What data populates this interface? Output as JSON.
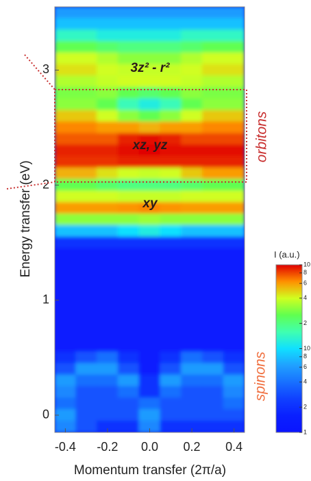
{
  "chart_data": {
    "type": "heatmap",
    "xlabel": "Momentum transfer (2π/a)",
    "ylabel": "Energy transfer (eV)",
    "xlim": [
      -0.45,
      0.45
    ],
    "ylim": [
      -0.15,
      3.55
    ],
    "xticks": [
      -0.4,
      -0.2,
      {
        "value": 0,
        "label": "0.0"
      },
      0.2,
      0.4
    ],
    "yticks": [
      0,
      1,
      2,
      3
    ],
    "x": [
      -0.4,
      -0.3,
      -0.2,
      -0.1,
      0,
      0.1,
      0.2,
      0.3,
      0.4
    ],
    "y": [
      3.5,
      3.4,
      3.3,
      3.2,
      3.1,
      3.0,
      2.9,
      2.8,
      2.7,
      2.6,
      2.5,
      2.4,
      2.3,
      2.2,
      2.1,
      2.0,
      1.9,
      1.8,
      1.7,
      1.6,
      1.5,
      1.4,
      1.3,
      1.2,
      1.1,
      1.0,
      0.9,
      0.8,
      0.7,
      0.6,
      0.5,
      0.4,
      0.3,
      0.2,
      0.1,
      0.0,
      -0.1
    ],
    "values": [
      [
        6,
        6,
        6,
        6,
        6,
        6,
        6,
        6,
        6
      ],
      [
        8,
        8,
        8,
        8,
        8,
        8,
        8,
        8,
        8
      ],
      [
        14,
        14,
        12,
        12,
        12,
        12,
        14,
        14,
        14
      ],
      [
        25,
        25,
        22,
        20,
        20,
        20,
        22,
        25,
        25
      ],
      [
        40,
        40,
        35,
        30,
        30,
        30,
        35,
        40,
        40
      ],
      [
        45,
        45,
        40,
        38,
        38,
        38,
        40,
        45,
        45
      ],
      [
        35,
        35,
        38,
        40,
        40,
        40,
        38,
        35,
        35
      ],
      [
        28,
        28,
        30,
        25,
        22,
        25,
        30,
        28,
        28
      ],
      [
        30,
        30,
        25,
        15,
        12,
        15,
        25,
        30,
        30
      ],
      [
        50,
        50,
        40,
        30,
        25,
        30,
        40,
        50,
        50
      ],
      [
        65,
        65,
        60,
        60,
        55,
        60,
        60,
        65,
        65
      ],
      [
        75,
        75,
        75,
        90,
        95,
        90,
        80,
        80,
        80
      ],
      [
        90,
        90,
        90,
        95,
        100,
        95,
        95,
        95,
        95
      ],
      [
        85,
        85,
        85,
        90,
        90,
        90,
        90,
        90,
        90
      ],
      [
        55,
        55,
        45,
        40,
        38,
        40,
        50,
        60,
        60
      ],
      [
        25,
        25,
        22,
        20,
        20,
        20,
        22,
        25,
        25
      ],
      [
        40,
        40,
        40,
        38,
        38,
        38,
        40,
        40,
        40
      ],
      [
        60,
        60,
        60,
        62,
        65,
        62,
        60,
        60,
        60
      ],
      [
        30,
        30,
        30,
        30,
        32,
        30,
        30,
        30,
        30
      ],
      [
        8,
        8,
        8,
        10,
        12,
        10,
        8,
        8,
        8
      ],
      [
        2,
        2,
        2,
        2,
        2,
        2,
        2,
        2,
        2
      ],
      [
        1.5,
        1.5,
        1.5,
        1.5,
        1.5,
        1.5,
        1.5,
        1.5,
        1.5
      ],
      [
        1.5,
        1.5,
        1.5,
        1.5,
        1.5,
        1.5,
        1.5,
        1.5,
        1.5
      ],
      [
        1.5,
        1.5,
        1.5,
        1.5,
        1.5,
        1.5,
        1.5,
        1.5,
        1.5
      ],
      [
        1.5,
        1.5,
        1.5,
        1.5,
        1.5,
        1.5,
        1.5,
        1.5,
        1.5
      ],
      [
        1.5,
        1.5,
        1.5,
        1.5,
        1.5,
        1.5,
        1.5,
        1.5,
        1.5
      ],
      [
        1.5,
        1.5,
        1.5,
        1.5,
        1.5,
        1.5,
        1.5,
        1.5,
        1.5
      ],
      [
        1.5,
        1.5,
        1.5,
        1.5,
        1.5,
        1.5,
        1.5,
        1.5,
        1.5
      ],
      [
        1.5,
        1.5,
        1.5,
        1.5,
        1.5,
        1.5,
        1.5,
        1.5,
        1.5
      ],
      [
        1.5,
        1.5,
        1.5,
        1.5,
        1.5,
        1.5,
        1.5,
        1.5,
        1.5
      ],
      [
        2,
        3,
        4,
        2,
        1.5,
        2,
        4,
        3,
        2
      ],
      [
        3,
        6,
        6,
        3,
        1.5,
        3,
        6,
        6,
        3
      ],
      [
        6,
        4,
        4,
        6,
        2,
        6,
        4,
        4,
        6
      ],
      [
        5,
        3,
        3,
        4,
        2,
        4,
        3,
        3,
        5
      ],
      [
        4,
        3,
        3,
        3,
        4,
        3,
        3,
        3,
        4
      ],
      [
        6,
        3,
        3,
        3,
        6,
        3,
        3,
        3,
        3
      ],
      [
        5,
        3,
        2,
        2,
        5,
        2,
        2,
        2,
        2
      ]
    ],
    "colorbar_label": "I (a.u.)",
    "zscale": "log",
    "zlim": [
      1,
      100
    ],
    "zticks": [
      1,
      2,
      4,
      6,
      8,
      10,
      {
        "value": 20,
        "label": "2"
      },
      {
        "value": 40,
        "label": "4"
      },
      {
        "value": 60,
        "label": "6"
      },
      {
        "value": 80,
        "label": "8"
      },
      {
        "value": 100,
        "label": "10"
      }
    ],
    "colormap": [
      "#0a14ff",
      "#0a20ff",
      "#1040ff",
      "#1870ff",
      "#20a0ff",
      "#10e0ff",
      "#40ffb0",
      "#60ff50",
      "#d0ff20",
      "#ff9000",
      "#e00000"
    ],
    "annotations": [
      "3z² - r²",
      "xz, yz",
      "xy",
      "orbitons",
      "spinons"
    ]
  }
}
